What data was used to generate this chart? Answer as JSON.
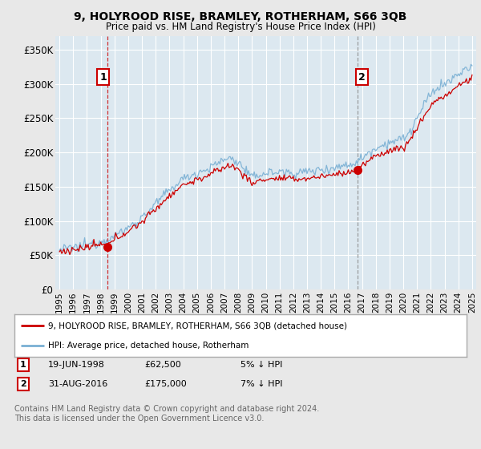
{
  "title": "9, HOLYROOD RISE, BRAMLEY, ROTHERHAM, S66 3QB",
  "subtitle": "Price paid vs. HM Land Registry's House Price Index (HPI)",
  "ylim": [
    0,
    370000
  ],
  "yticks": [
    0,
    50000,
    100000,
    150000,
    200000,
    250000,
    300000,
    350000
  ],
  "ytick_labels": [
    "£0",
    "£50K",
    "£100K",
    "£150K",
    "£200K",
    "£250K",
    "£300K",
    "£350K"
  ],
  "bg_color": "#e8e8e8",
  "plot_bg_color": "#dce8f0",
  "grid_color": "#ffffff",
  "hpi_color": "#7ab0d4",
  "price_color": "#cc0000",
  "sale1_date_num": 1998.47,
  "sale1_price": 62500,
  "sale2_date_num": 2016.66,
  "sale2_price": 175000,
  "legend_line1": "9, HOLYROOD RISE, BRAMLEY, ROTHERHAM, S66 3QB (detached house)",
  "legend_line2": "HPI: Average price, detached house, Rotherham",
  "footnote": "Contains HM Land Registry data © Crown copyright and database right 2024.\nThis data is licensed under the Open Government Licence v3.0.",
  "xmin": 1994.7,
  "xmax": 2025.3,
  "xticks": [
    1995,
    1996,
    1997,
    1998,
    1999,
    2000,
    2001,
    2002,
    2003,
    2004,
    2005,
    2006,
    2007,
    2008,
    2009,
    2010,
    2011,
    2012,
    2013,
    2014,
    2015,
    2016,
    2017,
    2018,
    2019,
    2020,
    2021,
    2022,
    2023,
    2024,
    2025
  ]
}
